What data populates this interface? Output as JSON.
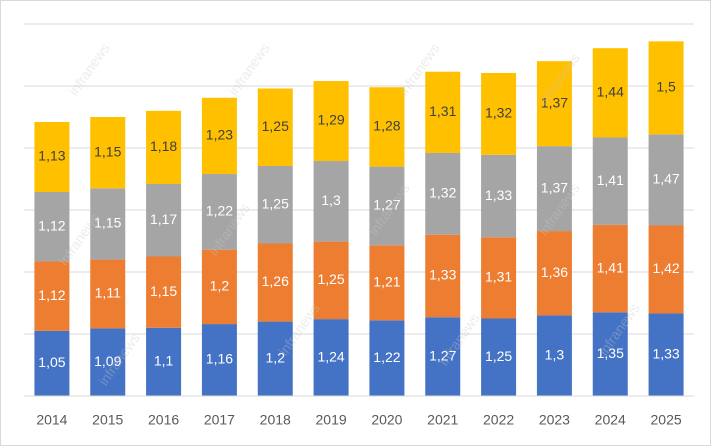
{
  "chart_data": {
    "type": "stacked-bar",
    "categories": [
      "2014",
      "2015",
      "2016",
      "2017",
      "2018",
      "2019",
      "2020",
      "2021",
      "2022",
      "2023",
      "2024",
      "2025"
    ],
    "series": [
      {
        "color": "#4472c4",
        "label_color": "#ffffff",
        "values": [
          1.05,
          1.09,
          1.1,
          1.16,
          1.2,
          1.24,
          1.22,
          1.27,
          1.25,
          1.3,
          1.35,
          1.33
        ],
        "value_labels": [
          "1,05",
          "1,09",
          "1,1",
          "1,16",
          "1,2",
          "1,24",
          "1,22",
          "1,27",
          "1,25",
          "1,3",
          "1,35",
          "1,33"
        ]
      },
      {
        "color": "#ed7d31",
        "label_color": "#ffffff",
        "values": [
          1.12,
          1.11,
          1.15,
          1.2,
          1.26,
          1.25,
          1.21,
          1.33,
          1.31,
          1.36,
          1.41,
          1.42
        ],
        "value_labels": [
          "1,12",
          "1,11",
          "1,15",
          "1,2",
          "1,26",
          "1,25",
          "1,21",
          "1,33",
          "1,31",
          "1,36",
          "1,41",
          "1,42"
        ]
      },
      {
        "color": "#a5a5a5",
        "label_color": "#ffffff",
        "values": [
          1.12,
          1.15,
          1.17,
          1.22,
          1.25,
          1.3,
          1.27,
          1.32,
          1.33,
          1.37,
          1.41,
          1.47
        ],
        "value_labels": [
          "1,12",
          "1,15",
          "1,17",
          "1,22",
          "1,25",
          "1,3",
          "1,27",
          "1,32",
          "1,33",
          "1,37",
          "1,41",
          "1,47"
        ]
      },
      {
        "color": "#ffc000",
        "label_color": "#404040",
        "values": [
          1.13,
          1.15,
          1.18,
          1.23,
          1.25,
          1.29,
          1.28,
          1.31,
          1.32,
          1.37,
          1.44,
          1.5
        ],
        "value_labels": [
          "1,13",
          "1,15",
          "1,18",
          "1,23",
          "1,25",
          "1,29",
          "1,28",
          "1,31",
          "1,32",
          "1,37",
          "1,44",
          "1,5"
        ]
      }
    ],
    "ylim": [
      0,
      6
    ],
    "yticks": [
      0,
      1,
      2,
      3,
      4,
      5,
      6
    ],
    "grid": true,
    "watermark": "infranews"
  }
}
